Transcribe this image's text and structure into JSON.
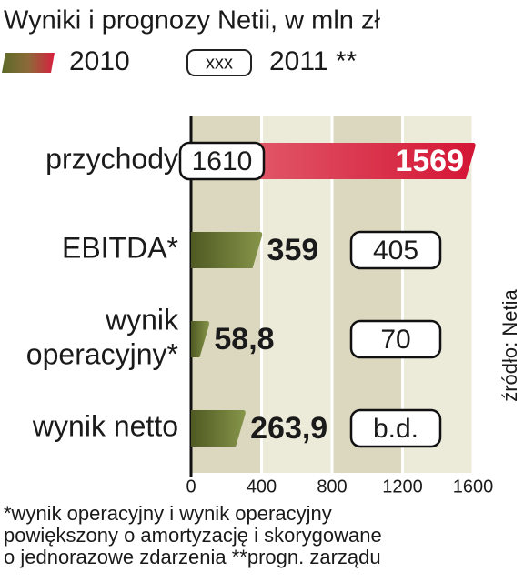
{
  "chart_data": {
    "type": "hbar",
    "title": "Wyniki i prognozy Netii, w mln zł",
    "categories": [
      [
        "przychody"
      ],
      [
        "EBITDA*"
      ],
      [
        "wynik",
        "operacyjny*"
      ],
      [
        "wynik netto"
      ]
    ],
    "series": [
      {
        "name": "2010",
        "colors": [
          "#d8203e",
          "#66742f",
          "#66742f",
          "#66742f"
        ],
        "values": [
          1569,
          359,
          58.8,
          263.9
        ],
        "value_labels": [
          "1569",
          "359",
          "58,8",
          "263,9"
        ]
      },
      {
        "name": "2011 **",
        "legend_box": "xxx",
        "values": [
          1610,
          405,
          70,
          null
        ],
        "value_labels": [
          "1610",
          "405",
          "70",
          "b.d."
        ]
      }
    ],
    "xlim": [
      0,
      1600
    ],
    "xticks": [
      0,
      400,
      800,
      1200,
      1600
    ],
    "source": "źródło: Netia",
    "footnote": [
      "*wynik operacyjny i wynik operacyjny",
      "powiększony o amortyzację i skorygowane",
      "o jednorazowe zdarzenia **progn. zarządu"
    ]
  }
}
